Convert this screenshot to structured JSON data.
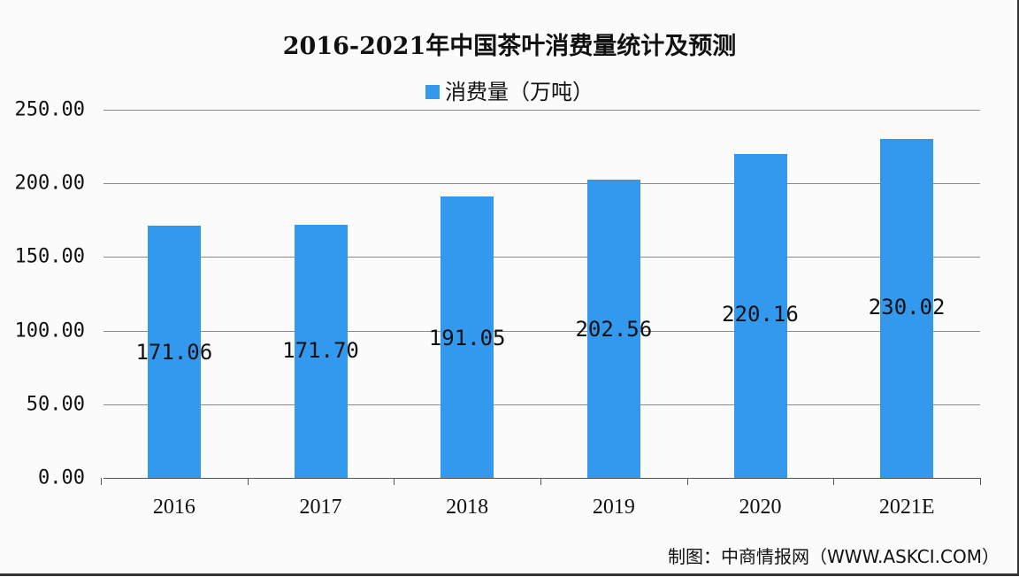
{
  "chart_data": {
    "type": "bar",
    "title": "2016-2021年中国茶叶消费量统计及预测",
    "categories": [
      "2016",
      "2017",
      "2018",
      "2019",
      "2020",
      "2021E"
    ],
    "series": [
      {
        "name": "消费量（万吨）",
        "values": [
          171.06,
          171.7,
          191.05,
          202.56,
          220.16,
          230.02
        ],
        "color": "#3399ee"
      }
    ],
    "data_labels": [
      "171.06",
      "171.70",
      "191.05",
      "202.56",
      "220.16",
      "230.02"
    ],
    "xlabel": "",
    "ylabel": "",
    "ylim": [
      0,
      250
    ],
    "yticks": [
      "0.00",
      "50.00",
      "100.00",
      "150.00",
      "200.00",
      "250.00"
    ],
    "grid": true,
    "legend_position": "top"
  },
  "title": "2016-2021年中国茶叶消费量统计及预测",
  "legend": {
    "label": "消费量（万吨）",
    "color": "#3399ee"
  },
  "source": "制图：中商情报网（WWW.ASKCI.COM）"
}
